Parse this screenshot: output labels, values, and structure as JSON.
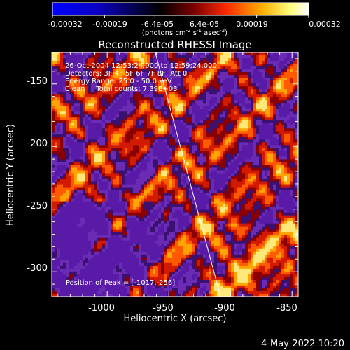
{
  "colorbar": {
    "tick_labels": [
      "-0.00032",
      "-0.00019",
      "-6.4e-05",
      "6.4e-05",
      "0.00019",
      "0.00032"
    ],
    "unit_text": "(photons cm",
    "unit_exp1": "-2",
    "unit_mid": " s",
    "unit_exp2": "-1",
    "unit_mid2": " asec",
    "unit_exp3": "-2",
    "unit_close": ")",
    "range": [
      -0.00032,
      0.00032
    ],
    "colors": [
      "#0000ff",
      "#000000",
      "#7a0000",
      "#ff2a00",
      "#ffb000",
      "#ffff80",
      "#ffffff"
    ]
  },
  "chart_data": {
    "type": "heatmap",
    "title": "Reconstructed RHESSI Image",
    "xlabel": "Heliocentric X (arcsec)",
    "ylabel": "Heliocentric Y (arcsec)",
    "xlim": [
      -1045,
      -845
    ],
    "ylim": [
      -320,
      -125
    ],
    "xticks": [
      -1000,
      -950,
      -900,
      -850
    ],
    "yticks": [
      -150,
      -200,
      -250,
      -300
    ],
    "xtick_labels": [
      "-1000",
      "-950",
      "-900",
      "-850"
    ],
    "ytick_labels": [
      "-150",
      "-200",
      "-250",
      "-300"
    ],
    "info_lines": [
      "26-Oct-2004 12:53:24.000 to 12:59:24.000",
      "Detectors: 3F 4F 5F 6F 7F 8F, Att 0",
      "Energy Range: 25.0 - 50.0 keV",
      "Clean     Total counts: 7.39E+03"
    ],
    "peak_label": "Position of Peak = [-1017,-256]",
    "peak": [
      -1017,
      -256
    ],
    "limb_line": [
      [
        -961,
        -125
      ],
      [
        -908,
        -320
      ]
    ]
  },
  "footer": {
    "date": "4-May-2022 10:20"
  }
}
